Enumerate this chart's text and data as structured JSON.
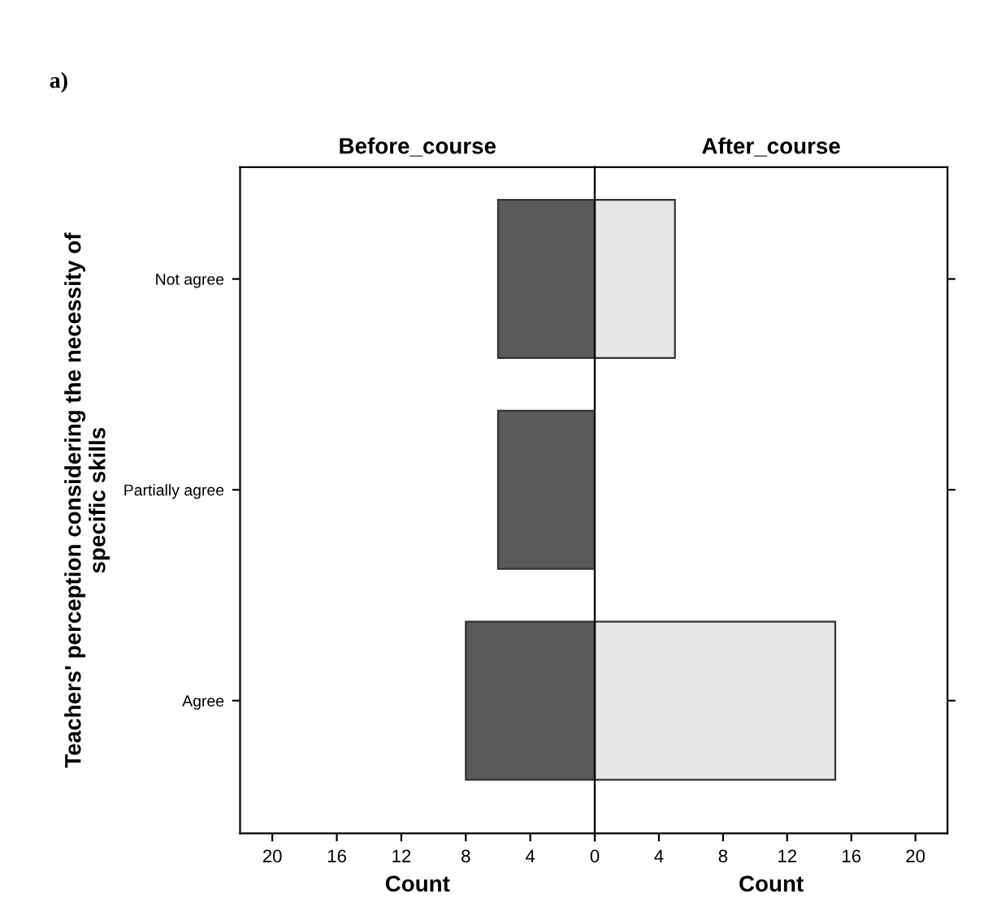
{
  "chart_data": [
    {
      "type": "bar",
      "orientation": "horizontal",
      "title": "Before_course",
      "xlabel": "Count",
      "ylabel": "Teachers' perception considering the necessity of\nspecific skills",
      "annotations": [
        "a)"
      ],
      "categories": [
        "Not agree",
        "Partially agree",
        "Agree"
      ],
      "series": [
        {
          "color": "#5a5a5a",
          "values": [
            6,
            6,
            8
          ]
        }
      ],
      "xlim": [
        22,
        0
      ],
      "xticks": [
        20,
        16,
        12,
        8,
        4,
        0
      ],
      "grid": false,
      "legend": false
    },
    {
      "type": "bar",
      "orientation": "horizontal",
      "title": "After_course",
      "xlabel": "Count",
      "categories": [
        null,
        null,
        null
      ],
      "series": [
        {
          "color": "#e6e6e6",
          "values": [
            5,
            0,
            15
          ]
        }
      ],
      "xlim": [
        0,
        22
      ],
      "xticks": [
        {
          "value": 0,
          "label": null
        },
        4,
        8,
        12,
        16,
        20
      ],
      "tick_labels": "x",
      "grid": false,
      "legend": false
    }
  ]
}
